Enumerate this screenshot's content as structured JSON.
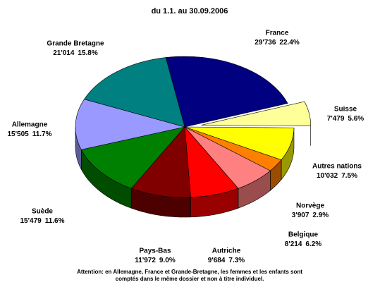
{
  "chart_data": {
    "type": "pie3d",
    "title": "du 1.1. au 30.09.2006",
    "categories": [
      "France",
      "Suisse",
      "Autres nations",
      "Norvège",
      "Belgique",
      "Autriche",
      "Pays-Bas",
      "Suède",
      "Allemagne",
      "Grande Bretagne"
    ],
    "values": [
      29736,
      7479,
      10032,
      3907,
      8214,
      9684,
      11972,
      15479,
      15505,
      21014
    ],
    "value_labels": [
      "29'736",
      "7'479",
      "10'032",
      "3'907",
      "8'214",
      "9'684",
      "11'972",
      "15'479",
      "15'505",
      "21'014"
    ],
    "shares": [
      22.4,
      5.6,
      7.5,
      2.9,
      6.2,
      7.3,
      9.0,
      11.6,
      11.7,
      15.8
    ],
    "share_labels": [
      "22.4%",
      "5.6%",
      "7.5%",
      "2.9%",
      "6.2%",
      "7.3%",
      "9.0%",
      "11.6%",
      "11.7%",
      "15.8%"
    ],
    "colors": [
      "#000080",
      "#ffff99",
      "#ffff00",
      "#ff8000",
      "#ff8080",
      "#ff0000",
      "#800000",
      "#008000",
      "#9999ff",
      "#008080"
    ],
    "exploded": [
      "Suisse"
    ],
    "footnote": [
      "Attention: en Allemagne, France et Grande-Bretagne, les femmes et les enfants sont",
      "comptés dans le même dossier et non à titre individuel."
    ]
  }
}
